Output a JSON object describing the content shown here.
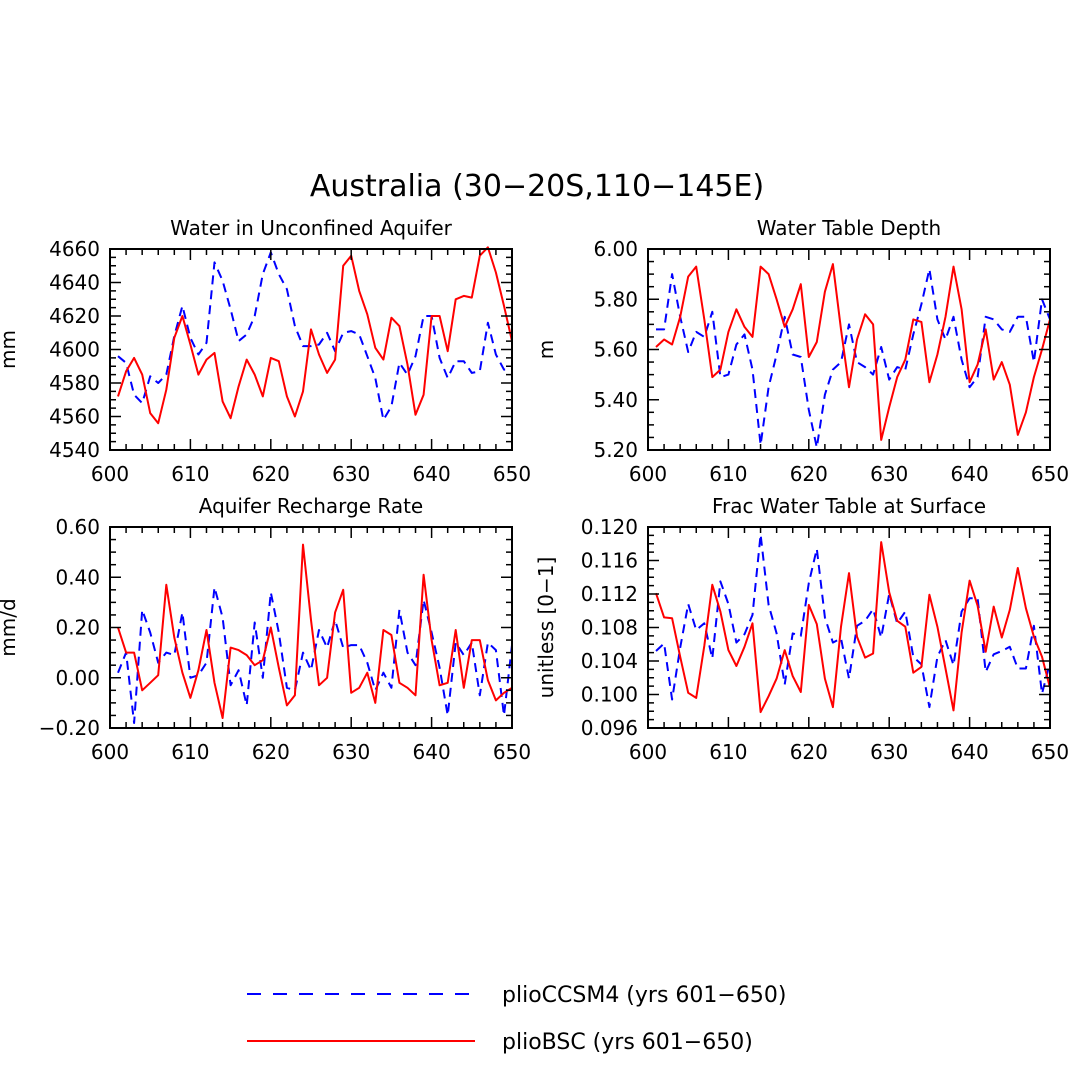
{
  "figure_title": "Australia (30−20S,110−145E)",
  "colors": {
    "pliocesm4": "#0000ff",
    "pliobsc": "#ff0000",
    "axes": "#000000"
  },
  "legend": [
    {
      "label": "plioCCSM4 (yrs 601−650)",
      "color": "#0000ff",
      "style": "dashed"
    },
    {
      "label": "plioBSC (yrs 601−650)",
      "color": "#ff0000",
      "style": "solid"
    }
  ],
  "chart_data": [
    {
      "type": "line",
      "title": "Water in Unconfined Aquifer",
      "xlabel": "",
      "ylabel": "mm",
      "xlim": [
        600,
        650
      ],
      "ylim": [
        4540,
        4660
      ],
      "xticks": [
        600,
        610,
        620,
        630,
        640,
        650
      ],
      "xtick_labels": [
        "600",
        "610",
        "620",
        "630",
        "640",
        "650"
      ],
      "yticks": [
        4540,
        4560,
        4580,
        4600,
        4620,
        4640,
        4660
      ],
      "ytick_labels": [
        "4540",
        "4560",
        "4580",
        "4600",
        "4620",
        "4640",
        "4660"
      ],
      "x": [
        601,
        602,
        603,
        604,
        605,
        606,
        607,
        608,
        609,
        610,
        611,
        612,
        613,
        614,
        615,
        616,
        617,
        618,
        619,
        620,
        621,
        622,
        623,
        624,
        625,
        626,
        627,
        628,
        629,
        630,
        631,
        632,
        633,
        634,
        635,
        636,
        637,
        638,
        639,
        640,
        641,
        642,
        643,
        644,
        645,
        646,
        647,
        648,
        649,
        650
      ],
      "series": [
        {
          "name": "plioCCSM4",
          "values": [
            4596,
            4592,
            4573,
            4568,
            4584,
            4580,
            4585,
            4608,
            4626,
            4607,
            4597,
            4604,
            4652,
            4641,
            4624,
            4605,
            4609,
            4620,
            4645,
            4658,
            4645,
            4636,
            4614,
            4602,
            4602,
            4603,
            4610,
            4599,
            4610,
            4611,
            4609,
            4596,
            4583,
            4558,
            4566,
            4592,
            4585,
            4596,
            4620,
            4620,
            4595,
            4583,
            4593,
            4593,
            4586,
            4587,
            4616,
            4597,
            4588,
            4588
          ]
        },
        {
          "name": "plioBSC",
          "values": [
            4572,
            4587,
            4595,
            4585,
            4562,
            4556,
            4576,
            4607,
            4620,
            4603,
            4585,
            4594,
            4598,
            4569,
            4559,
            4578,
            4594,
            4585,
            4572,
            4595,
            4593,
            4572,
            4560,
            4575,
            4612,
            4597,
            4586,
            4594,
            4650,
            4656,
            4635,
            4621,
            4601,
            4594,
            4619,
            4614,
            4591,
            4561,
            4573,
            4620,
            4620,
            4599,
            4630,
            4632,
            4631,
            4656,
            4661,
            4646,
            4626,
            4605
          ]
        }
      ]
    },
    {
      "type": "line",
      "title": "Water Table Depth",
      "xlabel": "",
      "ylabel": "m",
      "xlim": [
        600,
        650
      ],
      "ylim": [
        5.2,
        6.0
      ],
      "xticks": [
        600,
        610,
        620,
        630,
        640,
        650
      ],
      "xtick_labels": [
        "600",
        "610",
        "620",
        "630",
        "640",
        "650"
      ],
      "yticks": [
        5.2,
        5.4,
        5.6,
        5.8,
        6.0
      ],
      "ytick_labels": [
        "5.20",
        "5.40",
        "5.60",
        "5.80",
        "6.00"
      ],
      "x": [
        601,
        602,
        603,
        604,
        605,
        606,
        607,
        608,
        609,
        610,
        611,
        612,
        613,
        614,
        615,
        616,
        617,
        618,
        619,
        620,
        621,
        622,
        623,
        624,
        625,
        626,
        627,
        628,
        629,
        630,
        631,
        632,
        633,
        634,
        635,
        636,
        637,
        638,
        639,
        640,
        641,
        642,
        643,
        644,
        645,
        646,
        647,
        648,
        649,
        650
      ],
      "series": [
        {
          "name": "plioCCSM4",
          "values": [
            5.68,
            5.68,
            5.9,
            5.73,
            5.59,
            5.67,
            5.65,
            5.75,
            5.49,
            5.5,
            5.62,
            5.66,
            5.52,
            5.22,
            5.45,
            5.58,
            5.73,
            5.58,
            5.57,
            5.36,
            5.21,
            5.42,
            5.52,
            5.55,
            5.7,
            5.55,
            5.53,
            5.5,
            5.61,
            5.48,
            5.53,
            5.52,
            5.66,
            5.78,
            5.92,
            5.72,
            5.64,
            5.73,
            5.56,
            5.45,
            5.49,
            5.73,
            5.72,
            5.68,
            5.67,
            5.73,
            5.73,
            5.55,
            5.8,
            5.72
          ]
        },
        {
          "name": "plioBSC",
          "values": [
            5.61,
            5.64,
            5.62,
            5.73,
            5.89,
            5.93,
            5.72,
            5.49,
            5.52,
            5.67,
            5.76,
            5.69,
            5.65,
            5.93,
            5.9,
            5.8,
            5.69,
            5.76,
            5.86,
            5.57,
            5.63,
            5.83,
            5.94,
            5.68,
            5.45,
            5.64,
            5.74,
            5.7,
            5.24,
            5.37,
            5.49,
            5.56,
            5.72,
            5.71,
            5.47,
            5.58,
            5.73,
            5.93,
            5.76,
            5.47,
            5.54,
            5.68,
            5.48,
            5.55,
            5.46,
            5.26,
            5.35,
            5.49,
            5.6,
            5.72
          ]
        }
      ]
    },
    {
      "type": "line",
      "title": "Aquifer Recharge Rate",
      "xlabel": "",
      "ylabel": "mm/d",
      "xlim": [
        600,
        650
      ],
      "ylim": [
        -0.2,
        0.6
      ],
      "xticks": [
        600,
        610,
        620,
        630,
        640,
        650
      ],
      "xtick_labels": [
        "600",
        "610",
        "620",
        "630",
        "640",
        "650"
      ],
      "yticks": [
        -0.2,
        0.0,
        0.2,
        0.4,
        0.6
      ],
      "ytick_labels": [
        "−0.20",
        "0.00",
        "0.20",
        "0.40",
        "0.60"
      ],
      "x": [
        601,
        602,
        603,
        604,
        605,
        606,
        607,
        608,
        609,
        610,
        611,
        612,
        613,
        614,
        615,
        616,
        617,
        618,
        619,
        620,
        621,
        622,
        623,
        624,
        625,
        626,
        627,
        628,
        629,
        630,
        631,
        632,
        633,
        634,
        635,
        636,
        637,
        638,
        639,
        640,
        641,
        642,
        643,
        644,
        645,
        646,
        647,
        648,
        649,
        650
      ],
      "series": [
        {
          "name": "plioCCSM4",
          "values": [
            0.02,
            0.1,
            -0.18,
            0.27,
            0.18,
            0.06,
            0.1,
            0.09,
            0.26,
            0.0,
            0.01,
            0.06,
            0.36,
            0.24,
            -0.03,
            0.03,
            -0.11,
            0.22,
            0.0,
            0.34,
            0.18,
            -0.04,
            -0.05,
            0.1,
            0.03,
            0.19,
            0.12,
            0.23,
            0.12,
            0.13,
            0.13,
            0.06,
            -0.05,
            0.02,
            -0.04,
            0.27,
            0.1,
            0.05,
            0.31,
            0.18,
            0.04,
            -0.15,
            0.14,
            0.09,
            0.14,
            -0.07,
            0.14,
            0.11,
            -0.15,
            0.13
          ]
        },
        {
          "name": "plioBSC",
          "values": [
            0.2,
            0.1,
            0.1,
            -0.05,
            -0.02,
            0.01,
            0.37,
            0.16,
            0.02,
            -0.08,
            0.03,
            0.19,
            -0.02,
            -0.16,
            0.12,
            0.11,
            0.09,
            0.05,
            0.07,
            0.2,
            0.04,
            -0.11,
            -0.07,
            0.53,
            0.23,
            -0.03,
            0.0,
            0.26,
            0.35,
            -0.06,
            -0.04,
            0.02,
            -0.1,
            0.19,
            0.17,
            -0.02,
            -0.04,
            -0.07,
            0.41,
            0.15,
            -0.03,
            -0.02,
            0.19,
            -0.04,
            0.15,
            0.15,
            -0.01,
            -0.09,
            -0.06,
            -0.04
          ]
        }
      ]
    },
    {
      "type": "line",
      "title": "Frac Water Table at Surface",
      "xlabel": "",
      "ylabel": "unitless [0−1]",
      "xlim": [
        600,
        650
      ],
      "ylim": [
        0.096,
        0.12
      ],
      "xticks": [
        600,
        610,
        620,
        630,
        640,
        650
      ],
      "xtick_labels": [
        "600",
        "610",
        "620",
        "630",
        "640",
        "650"
      ],
      "yticks": [
        0.096,
        0.1,
        0.104,
        0.108,
        0.112,
        0.116,
        0.12
      ],
      "ytick_labels": [
        "0.096",
        "0.100",
        "0.104",
        "0.108",
        "0.112",
        "0.116",
        "0.120"
      ],
      "x": [
        601,
        602,
        603,
        604,
        605,
        606,
        607,
        608,
        609,
        610,
        611,
        612,
        613,
        614,
        615,
        616,
        617,
        618,
        619,
        620,
        621,
        622,
        623,
        624,
        625,
        626,
        627,
        628,
        629,
        630,
        631,
        632,
        633,
        634,
        635,
        636,
        637,
        638,
        639,
        640,
        641,
        642,
        643,
        644,
        645,
        646,
        647,
        648,
        649,
        650
      ],
      "series": [
        {
          "name": "plioCCSM4",
          "values": [
            0.1052,
            0.1061,
            0.0994,
            0.1056,
            0.1108,
            0.1077,
            0.1085,
            0.1043,
            0.1135,
            0.1108,
            0.1062,
            0.1072,
            0.1095,
            0.1191,
            0.1107,
            0.1073,
            0.1012,
            0.1073,
            0.107,
            0.1133,
            0.1174,
            0.1092,
            0.1062,
            0.1067,
            0.1019,
            0.1082,
            0.1088,
            0.1102,
            0.1068,
            0.112,
            0.1085,
            0.1099,
            0.1045,
            0.1036,
            0.0985,
            0.1045,
            0.1065,
            0.1035,
            0.1099,
            0.1115,
            0.1115,
            0.1027,
            0.1048,
            0.1052,
            0.1057,
            0.1031,
            0.1031,
            0.1082,
            0.1001,
            0.1038
          ]
        },
        {
          "name": "plioBSC",
          "values": [
            0.1121,
            0.1092,
            0.1091,
            0.1045,
            0.1002,
            0.0996,
            0.1058,
            0.1131,
            0.1099,
            0.1053,
            0.1034,
            0.1057,
            0.1085,
            0.0979,
            0.0998,
            0.1019,
            0.1053,
            0.1022,
            0.1003,
            0.1107,
            0.1084,
            0.1019,
            0.0985,
            0.1081,
            0.1145,
            0.1069,
            0.1044,
            0.1049,
            0.1182,
            0.1122,
            0.1088,
            0.1081,
            0.1026,
            0.1033,
            0.1119,
            0.1081,
            0.1031,
            0.0981,
            0.1074,
            0.1136,
            0.1106,
            0.1051,
            0.1105,
            0.1068,
            0.1101,
            0.1151,
            0.1103,
            0.1069,
            0.1045,
            0.1008
          ]
        }
      ]
    }
  ]
}
